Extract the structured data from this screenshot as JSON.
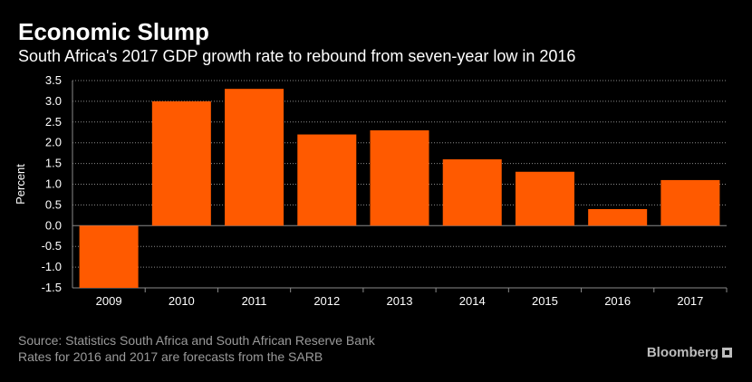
{
  "header": {
    "title": "Economic Slump",
    "subtitle": "South Africa's 2017 GDP growth rate to rebound from seven-year low in 2016"
  },
  "footer": {
    "source_line1": "Source: Statistics South Africa and South African Reserve Bank",
    "source_line2": "Rates for 2016 and 2017 are forecasts from the SARB",
    "brand": "Bloomberg"
  },
  "colors": {
    "background": "#000000",
    "bar": "#ff5a00",
    "text": "#ffffff",
    "muted": "#9a9a9a",
    "grid": "#8a8a8a"
  },
  "chart_data": {
    "type": "bar",
    "title": "Economic Slump",
    "subtitle": "South Africa's 2017 GDP growth rate to rebound from seven-year low in 2016",
    "xlabel": "",
    "ylabel": "Percent",
    "categories": [
      "2009",
      "2010",
      "2011",
      "2012",
      "2013",
      "2014",
      "2015",
      "2016",
      "2017"
    ],
    "values": [
      -1.5,
      3.0,
      3.3,
      2.2,
      2.3,
      1.6,
      1.3,
      0.4,
      1.1
    ],
    "ylim": [
      -1.5,
      3.5
    ],
    "yticks": [
      "-1.5",
      "-1.0",
      "-0.5",
      "0.0",
      "0.5",
      "1.0",
      "1.5",
      "2.0",
      "2.5",
      "3.0",
      "3.5"
    ],
    "ytick_values": [
      -1.5,
      -1.0,
      -0.5,
      0.0,
      0.5,
      1.0,
      1.5,
      2.0,
      2.5,
      3.0,
      3.5
    ],
    "grid": true,
    "legend": "none"
  }
}
